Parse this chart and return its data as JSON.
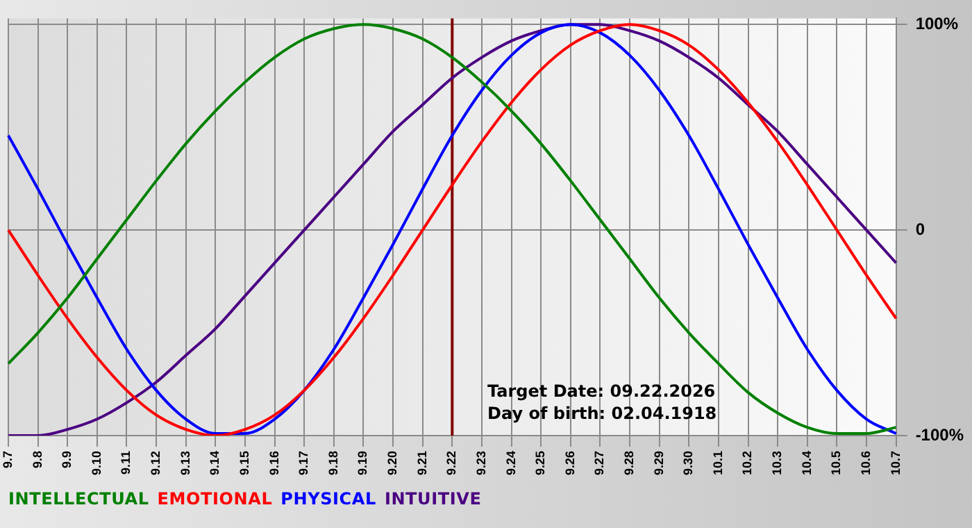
{
  "chart_data": {
    "type": "line",
    "categories": [
      "9.7",
      "9.8",
      "9.9",
      "9.10",
      "9.11",
      "9.12",
      "9.13",
      "9.14",
      "9.15",
      "9.16",
      "9.17",
      "9.18",
      "9.19",
      "9.20",
      "9.21",
      "9.22",
      "9.23",
      "9.24",
      "9.25",
      "9.26",
      "9.27",
      "9.28",
      "9.29",
      "9.30",
      "10.1",
      "10.2",
      "10.3",
      "10.4",
      "10.5",
      "10.6",
      "10.7"
    ],
    "series": [
      {
        "name": "INTELLECTUAL",
        "color": "#008000",
        "values": [
          -65,
          -50,
          -33,
          -14,
          5,
          24,
          42,
          58,
          72,
          84,
          93,
          98,
          100,
          98,
          93,
          84,
          72,
          58,
          42,
          24,
          5,
          -14,
          -33,
          -50,
          -65,
          -79,
          -89,
          -96,
          -99,
          -99,
          -96
        ]
      },
      {
        "name": "EMOTIONAL",
        "color": "#ff0000",
        "values": [
          0,
          -22,
          -43,
          -62,
          -78,
          -90,
          -97,
          -100,
          -97,
          -90,
          -78,
          -62,
          -43,
          -22,
          0,
          22,
          43,
          62,
          78,
          90,
          97,
          100,
          97,
          90,
          78,
          62,
          43,
          22,
          0,
          -22,
          -43
        ]
      },
      {
        "name": "PHYSICAL",
        "color": "#0000ff",
        "values": [
          46,
          20,
          -7,
          -33,
          -58,
          -78,
          -92,
          -99,
          -99,
          -92,
          -78,
          -58,
          -33,
          -7,
          20,
          46,
          68,
          85,
          96,
          100,
          96,
          85,
          68,
          46,
          20,
          -7,
          -33,
          -58,
          -78,
          -92,
          -99
        ]
      },
      {
        "name": "INTUITIVE",
        "color": "#4b0082",
        "values": [
          -100,
          -100,
          -97,
          -92,
          -84,
          -74,
          -61,
          -48,
          -32,
          -16,
          0,
          16,
          32,
          48,
          61,
          74,
          84,
          92,
          97,
          100,
          100,
          97,
          92,
          84,
          74,
          61,
          48,
          32,
          16,
          0,
          -16
        ]
      }
    ],
    "ylim": [
      -100,
      103
    ],
    "yticks": [
      {
        "value": 100,
        "label": "100%"
      },
      0,
      {
        "value": -100,
        "label": "-100%"
      }
    ],
    "ref_lines": [
      {
        "axis": "x",
        "value": "9.22",
        "color": "#800000"
      }
    ],
    "annotations": [
      "Target Date: 09.22.2026",
      "Day of birth: 02.04.1918"
    ],
    "grid": true,
    "legend": "bottom",
    "marker": "none",
    "line_style": "solid"
  }
}
